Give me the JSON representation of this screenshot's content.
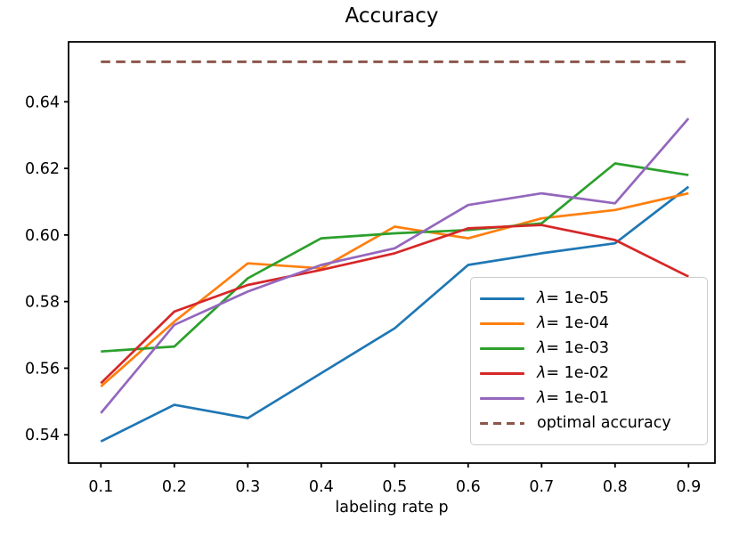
{
  "figure": {
    "background": "#ffffff"
  },
  "chart_data": {
    "type": "line",
    "title": "Accuracy",
    "xlabel": "labeling rate p",
    "ylabel": "",
    "grid": false,
    "legend_position": "lower right",
    "x": [
      0.1,
      0.2,
      0.3,
      0.4,
      0.5,
      0.6,
      0.7,
      0.8,
      0.9
    ],
    "xlim": [
      0.056,
      0.936
    ],
    "ylim": [
      0.5315,
      0.658
    ],
    "xticks": {
      "values": [
        0.1,
        0.2,
        0.3,
        0.4,
        0.5,
        0.6,
        0.7,
        0.8,
        0.9
      ],
      "labels": [
        "0.1",
        "0.2",
        "0.3",
        "0.4",
        "0.5",
        "0.6",
        "0.7",
        "0.8",
        "0.9"
      ]
    },
    "yticks": {
      "values": [
        0.54,
        0.56,
        0.58,
        0.6,
        0.62,
        0.64
      ],
      "labels": [
        "0.54",
        "0.56",
        "0.58",
        "0.60",
        "0.62",
        "0.64"
      ]
    },
    "series": [
      {
        "name": "λ= 1e-05",
        "color": "#1f77b4",
        "style": "solid",
        "values": [
          0.538,
          0.549,
          0.545,
          0.5585,
          0.572,
          0.591,
          0.5945,
          0.5975,
          0.6145
        ]
      },
      {
        "name": "λ= 1e-04",
        "color": "#ff7f0e",
        "style": "solid",
        "values": [
          0.5545,
          0.574,
          0.5915,
          0.59,
          0.6025,
          0.599,
          0.605,
          0.6075,
          0.6125
        ]
      },
      {
        "name": "λ= 1e-03",
        "color": "#2ca02c",
        "style": "solid",
        "values": [
          0.565,
          0.5665,
          0.587,
          0.599,
          0.6005,
          0.6015,
          0.6035,
          0.6215,
          0.618
        ]
      },
      {
        "name": "λ= 1e-02",
        "color": "#d62728",
        "style": "solid",
        "values": [
          0.5555,
          0.577,
          0.585,
          0.5895,
          0.5945,
          0.602,
          0.603,
          0.5985,
          0.5875
        ]
      },
      {
        "name": "λ= 1e-01",
        "color": "#9467bd",
        "style": "solid",
        "values": [
          0.5465,
          0.573,
          0.583,
          0.591,
          0.596,
          0.609,
          0.6125,
          0.6095,
          0.635
        ]
      },
      {
        "name": "optimal accuracy",
        "color": "#8c564b",
        "style": "dashed",
        "constant_value": 0.652
      }
    ]
  }
}
